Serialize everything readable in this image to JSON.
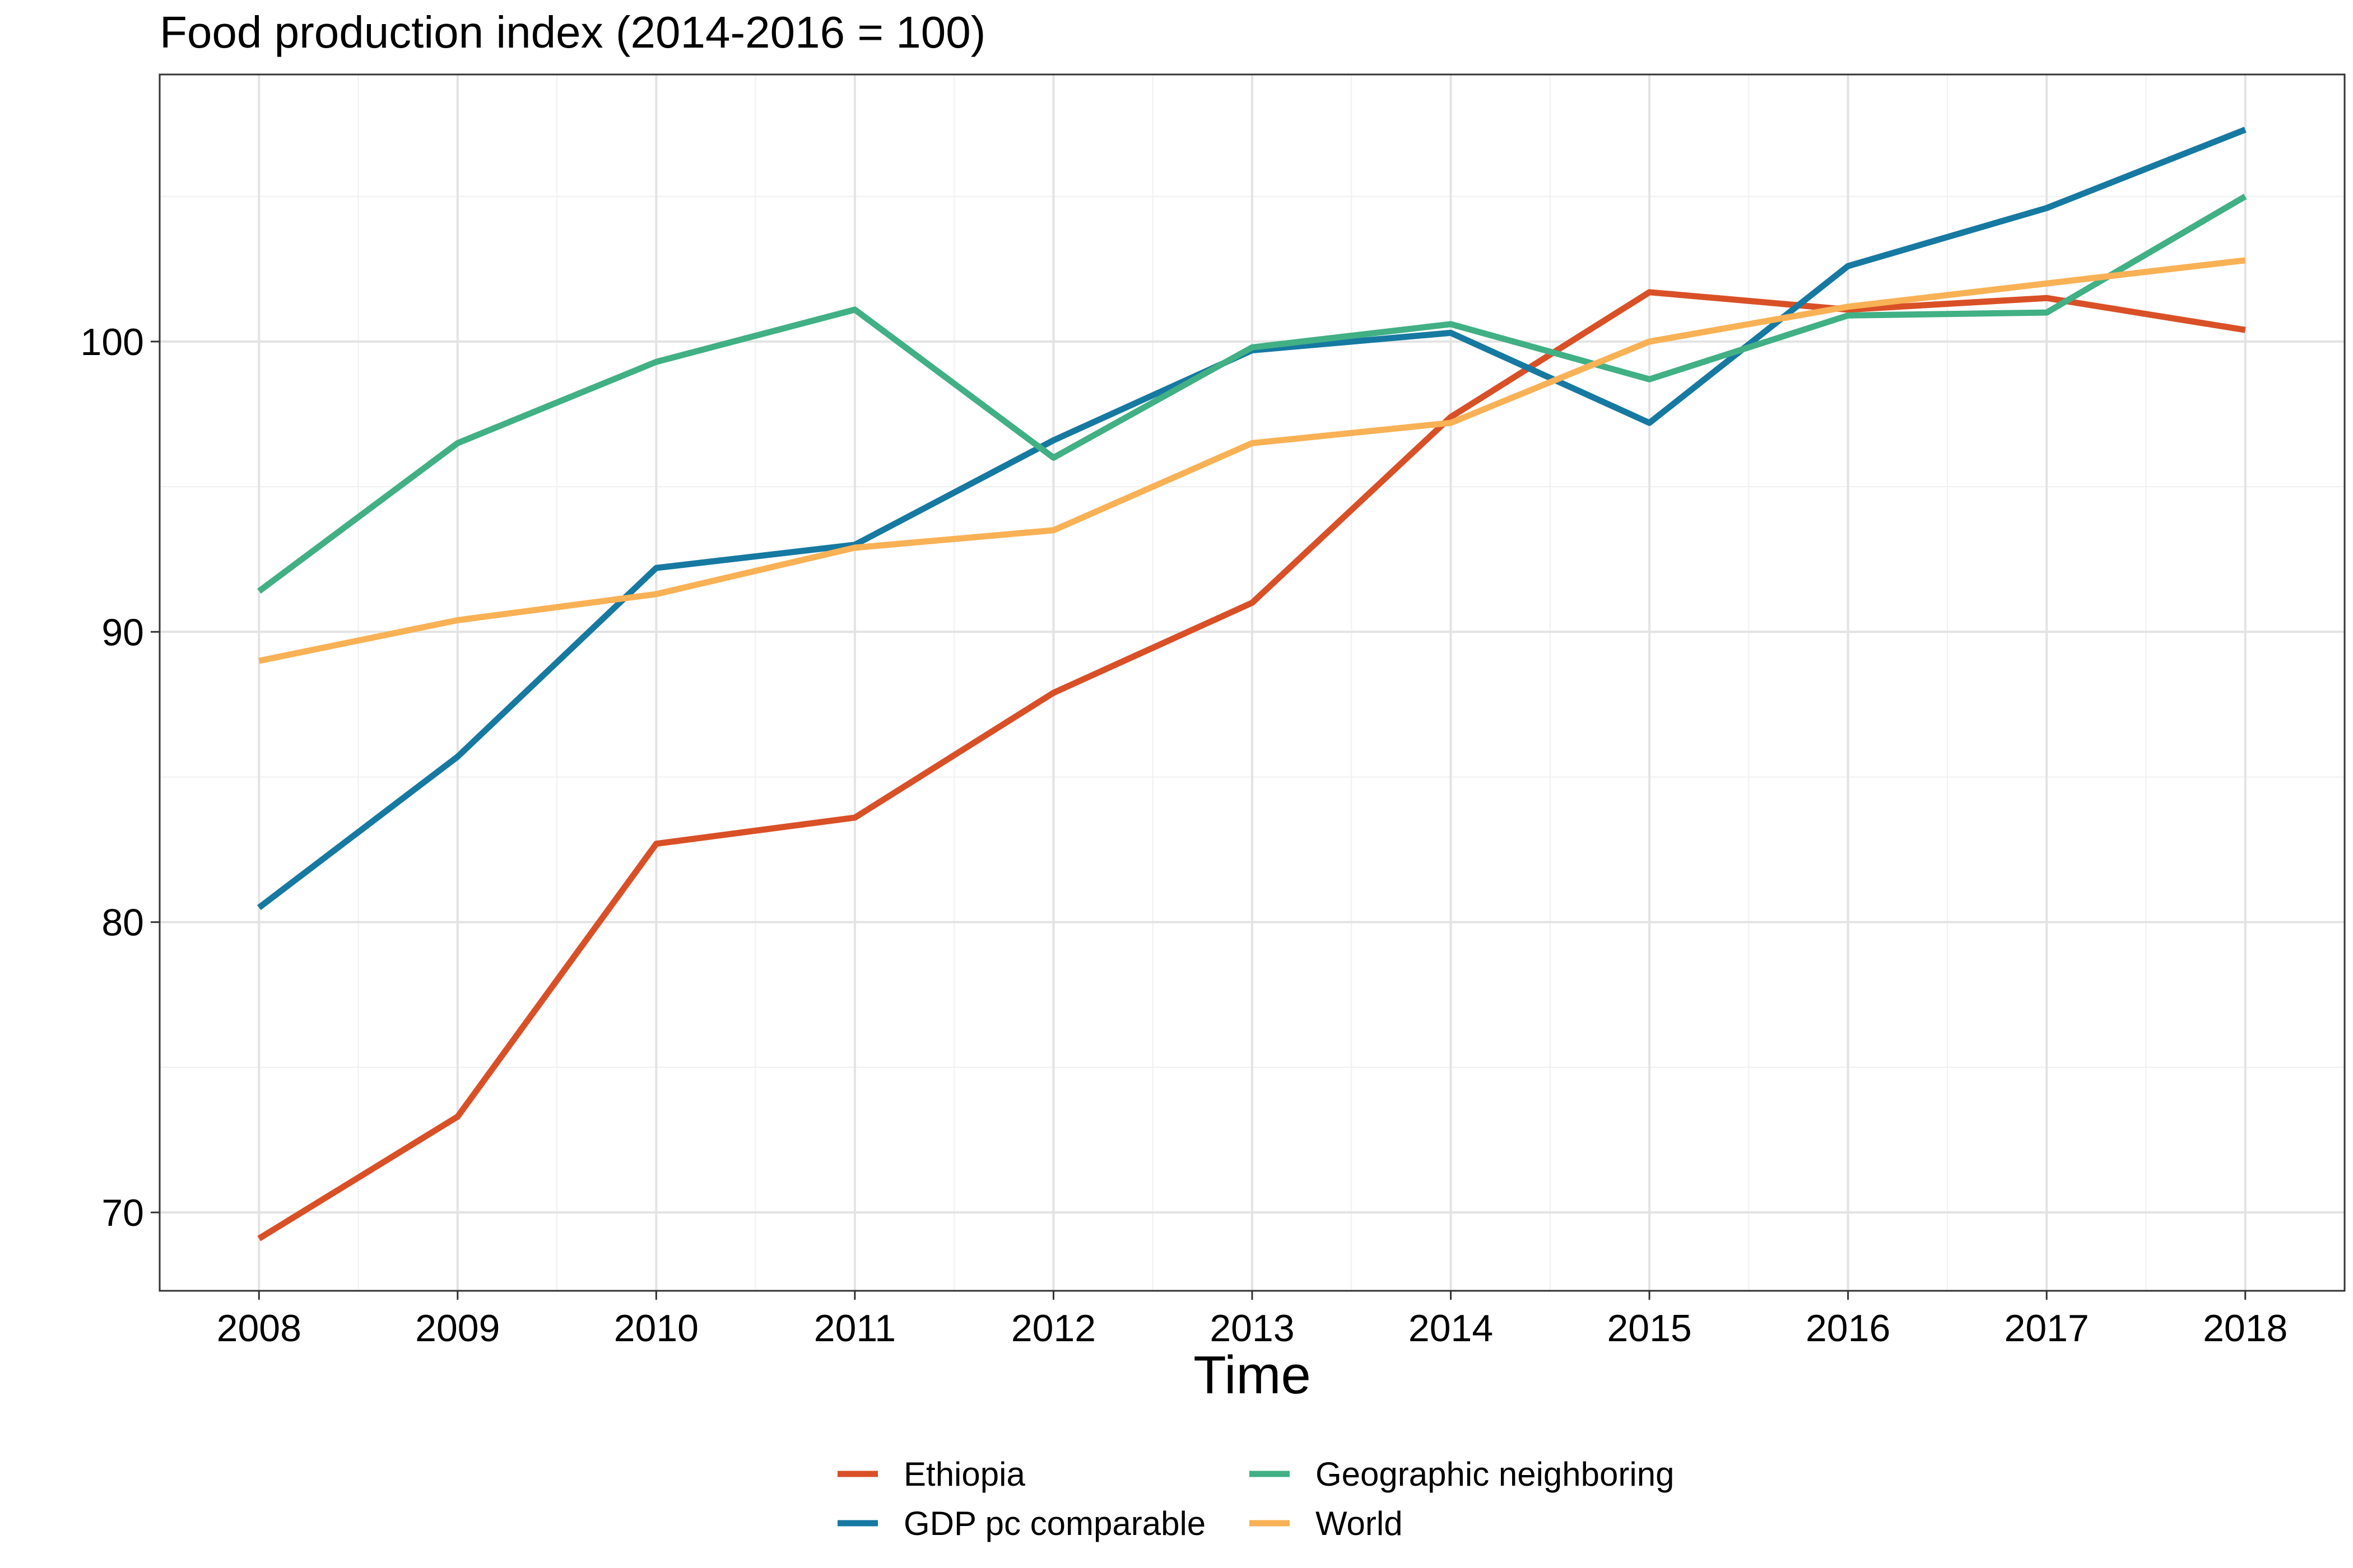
{
  "chart_data": {
    "type": "line",
    "title": "Food production index (2014-2016 = 100)",
    "xlabel": "Time",
    "ylabel": "",
    "x": [
      2008,
      2009,
      2010,
      2011,
      2012,
      2013,
      2014,
      2015,
      2016,
      2017,
      2018
    ],
    "xlim": [
      2007.5,
      2018.5
    ],
    "ylim": [
      67.3,
      109.2
    ],
    "y_ticks": [
      70,
      80,
      90,
      100
    ],
    "grid": true,
    "legend_position": "bottom",
    "series": [
      {
        "name": "Ethiopia",
        "color": "#D95027",
        "values": [
          69.1,
          73.3,
          82.7,
          83.6,
          87.9,
          91.0,
          97.4,
          101.7,
          101.1,
          101.5,
          100.4
        ]
      },
      {
        "name": "GDP pc comparable",
        "color": "#1679A1",
        "values": [
          80.5,
          85.7,
          92.2,
          93.0,
          96.6,
          99.7,
          100.3,
          97.2,
          102.6,
          104.6,
          107.3
        ]
      },
      {
        "name": "Geographic neighboring",
        "color": "#41B085",
        "values": [
          91.4,
          96.5,
          99.3,
          101.1,
          96.0,
          99.8,
          100.6,
          98.7,
          100.9,
          101.0,
          105.0
        ]
      },
      {
        "name": "World",
        "color": "#F9B155",
        "values": [
          89.0,
          90.4,
          91.3,
          92.9,
          93.5,
          96.5,
          97.2,
          100.0,
          101.2,
          102.0,
          102.8
        ]
      }
    ]
  }
}
